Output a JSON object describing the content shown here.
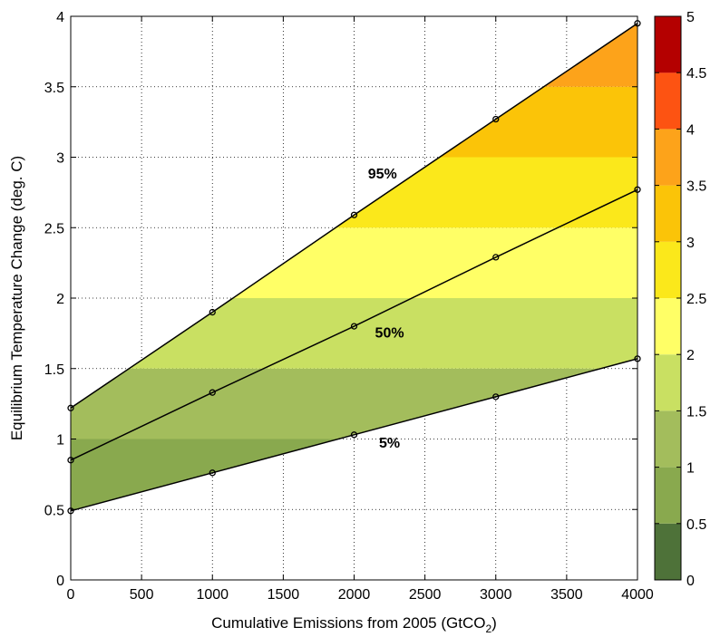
{
  "chart_data": {
    "type": "line",
    "title": "",
    "xlabel": "Cumulative Emissions from 2005 (GtCO",
    "xlabel_subscript": "2",
    "ylabel": "Equilibrium Temperature Change (deg. C)",
    "xlim": [
      0,
      4000
    ],
    "ylim": [
      0,
      4
    ],
    "grid": true,
    "x_ticks": [
      0,
      500,
      1000,
      1500,
      2000,
      2500,
      3000,
      3500,
      4000
    ],
    "x_tick_labels": [
      "0",
      "500",
      "1000",
      "1500",
      "2000",
      "2500",
      "3000",
      "3500",
      "4000"
    ],
    "y_ticks": [
      0,
      0.5,
      1,
      1.5,
      2,
      2.5,
      3,
      3.5,
      4
    ],
    "y_tick_labels": [
      "0",
      "0.5",
      "1",
      "1.5",
      "2",
      "2.5",
      "3",
      "3.5",
      "4"
    ],
    "x": [
      0,
      1000,
      2000,
      3000,
      4000
    ],
    "series": [
      {
        "label": "95%",
        "values": [
          1.22,
          1.9,
          2.59,
          3.27,
          3.95
        ],
        "label_at": [
          2200,
          2.85
        ]
      },
      {
        "label": "50%",
        "values": [
          0.85,
          1.33,
          1.8,
          2.29,
          2.77
        ],
        "label_at": [
          2250,
          1.72
        ]
      },
      {
        "label": "5%",
        "values": [
          0.49,
          0.76,
          1.03,
          1.3,
          1.57
        ],
        "label_at": [
          2250,
          0.94
        ]
      }
    ],
    "fill_between": [
      "5%",
      "95%"
    ],
    "colorbar": {
      "range": [
        0,
        5
      ],
      "bounds": [
        0,
        0.5,
        1,
        1.5,
        2,
        2.5,
        3,
        3.5,
        4,
        4.5,
        5
      ],
      "colors": [
        "#4e7239",
        "#89a94e",
        "#a3bd5c",
        "#c9e062",
        "#ffff66",
        "#fbe81b",
        "#fbc408",
        "#fda31a",
        "#fd5312",
        "#ff1414"
      ],
      "top_color": "#b40000",
      "tick_labels": [
        "0",
        "0.5",
        "1",
        "1.5",
        "2",
        "2.5",
        "3",
        "3.5",
        "4",
        "4.5",
        "5"
      ]
    }
  }
}
